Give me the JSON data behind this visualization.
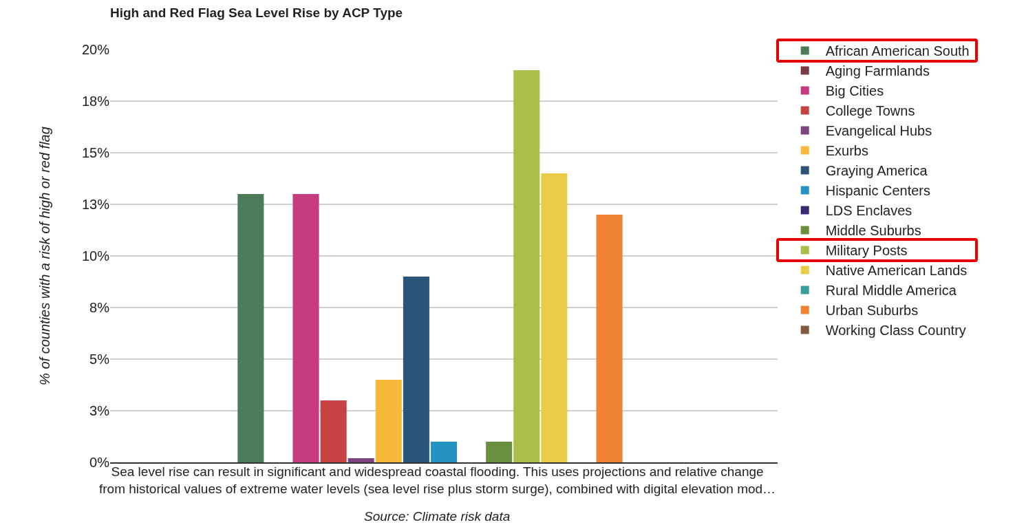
{
  "chart_data": {
    "type": "bar",
    "title": "High and Red Flag Sea Level Rise by ACP Type",
    "ylabel": "% of counties with a risk of high or red flag",
    "categories": [
      null
    ],
    "series": [
      {
        "name": "African American South",
        "color": "#4a7c59",
        "values": [
          13.0
        ]
      },
      {
        "name": "Aging Farmlands",
        "color": "#7b3a44",
        "values": [
          0
        ]
      },
      {
        "name": "Big Cities",
        "color": "#c63b7e",
        "values": [
          13.0
        ]
      },
      {
        "name": "College Towns",
        "color": "#c74242",
        "values": [
          3.0
        ]
      },
      {
        "name": "Evangelical Hubs",
        "color": "#7d4482",
        "values": [
          0.2
        ]
      },
      {
        "name": "Exurbs",
        "color": "#f7b93b",
        "values": [
          4.0
        ]
      },
      {
        "name": "Graying America",
        "color": "#2c5378",
        "values": [
          9.0
        ]
      },
      {
        "name": "Hispanic Centers",
        "color": "#2592c4",
        "values": [
          1.0
        ]
      },
      {
        "name": "LDS Enclaves",
        "color": "#3b2a73",
        "values": [
          0
        ]
      },
      {
        "name": "Middle Suburbs",
        "color": "#6a8f3e",
        "values": [
          1.0
        ]
      },
      {
        "name": "Military Posts",
        "color": "#adbd4a",
        "values": [
          19.0
        ]
      },
      {
        "name": "Native American Lands",
        "color": "#e8cc45",
        "values": [
          14.0
        ]
      },
      {
        "name": "Rural Middle America",
        "color": "#3a9e98",
        "values": [
          0
        ]
      },
      {
        "name": "Urban Suburbs",
        "color": "#ef8333",
        "values": [
          12.0
        ]
      },
      {
        "name": "Working Class Country",
        "color": "#845a3e",
        "values": [
          0
        ]
      }
    ],
    "ylim": [
      0,
      20
    ],
    "yticks": [
      {
        "value": 0,
        "label": "0%"
      },
      {
        "value": 2.5,
        "label": "3%"
      },
      {
        "value": 5,
        "label": "5%"
      },
      {
        "value": 7.5,
        "label": "8%"
      },
      {
        "value": 10,
        "label": "10%"
      },
      {
        "value": 12.5,
        "label": "13%"
      },
      {
        "value": 15,
        "label": "15%"
      },
      {
        "value": 17.5,
        "label": "18%"
      },
      {
        "value": 20,
        "label": "20%"
      }
    ],
    "grid": "y",
    "legend": "right",
    "tick_labels": "y",
    "annotations": [
      "Sea level rise can result in significant and widespread coastal flooding. This uses projections and relative change from historical values of extreme water levels (sea level rise plus storm surge), combined with digital elevation mod…",
      "Source: Climate risk data"
    ]
  }
}
